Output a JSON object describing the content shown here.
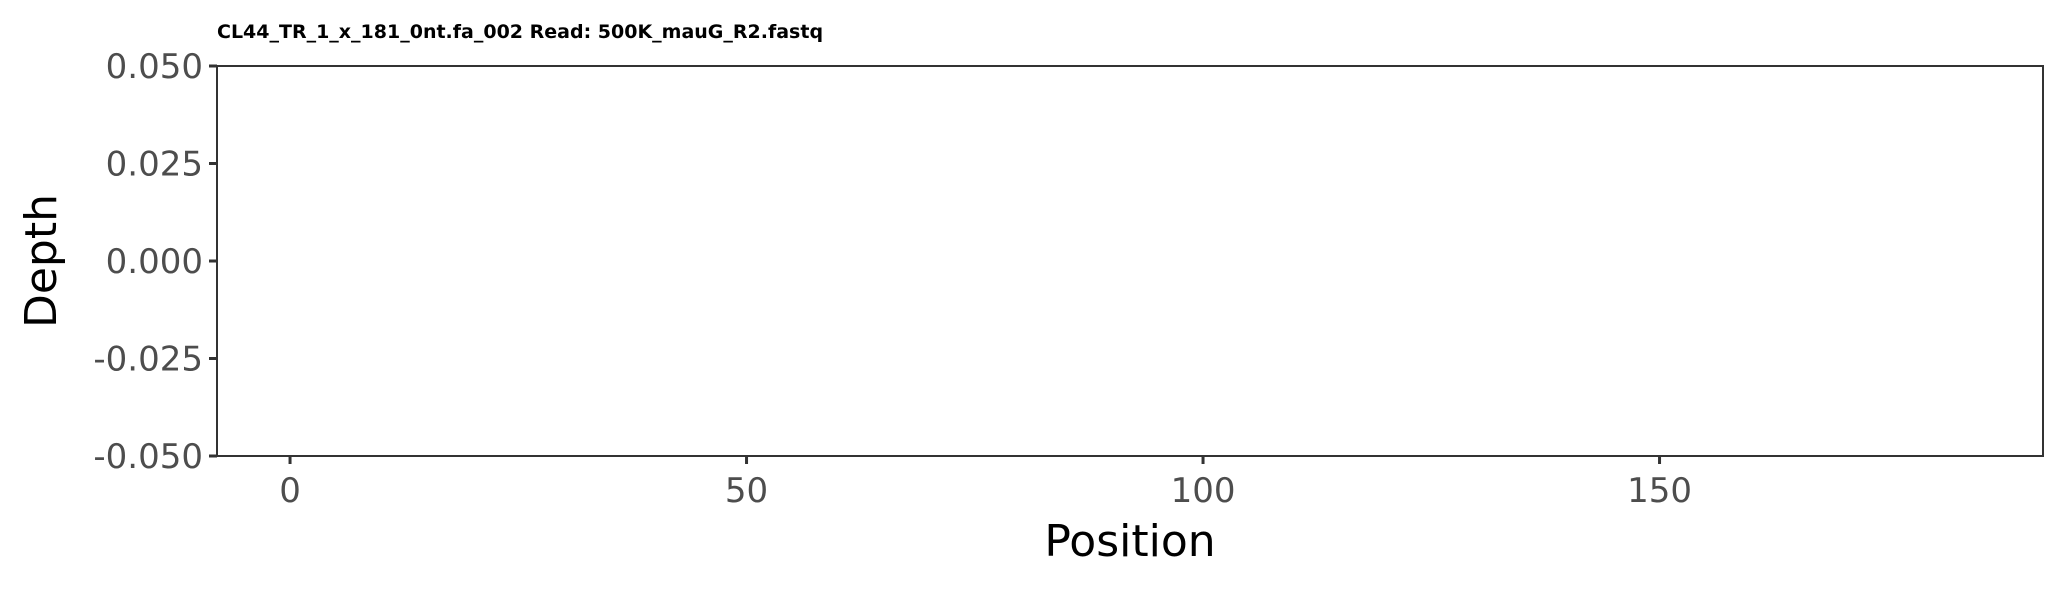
{
  "chart_data": {
    "type": "line",
    "title": "CL44_TR_1_x_181_0nt.fa_002 Read: 500K_mauG_R2.fastq",
    "xlabel": "Position",
    "ylabel": "Depth",
    "xlim": [
      -8,
      192
    ],
    "ylim": [
      -0.05,
      0.05
    ],
    "x_ticks": [
      0,
      50,
      100,
      150
    ],
    "x_tick_labels": [
      "0",
      "50",
      "100",
      "150"
    ],
    "y_ticks": [
      0.05,
      0.025,
      0.0,
      -0.025,
      -0.05
    ],
    "y_tick_labels": [
      "0.050",
      "0.025",
      "0.000",
      "-0.025",
      "-0.050"
    ],
    "grid": false,
    "series": []
  }
}
